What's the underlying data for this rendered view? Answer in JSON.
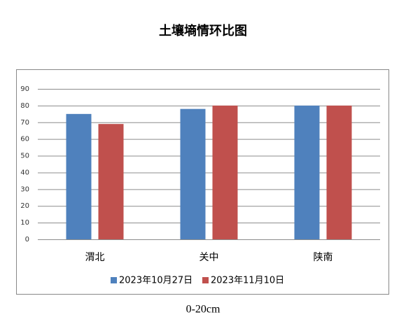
{
  "chart_data": {
    "type": "bar",
    "title": "土壤墒情环比图",
    "caption": "0-20cm",
    "categories": [
      "渭北",
      "关中",
      "陕南"
    ],
    "series": [
      {
        "name": "2023年10月27日",
        "color": "#4f81bd",
        "values": [
          75,
          78,
          80
        ]
      },
      {
        "name": "2023年11月10日",
        "color": "#c0504d",
        "values": [
          69,
          80,
          80
        ]
      }
    ],
    "ylim": [
      0,
      90
    ],
    "yticks": [
      0,
      10,
      20,
      30,
      40,
      50,
      60,
      70,
      80,
      90
    ],
    "grid": true,
    "legend": "bottom"
  }
}
